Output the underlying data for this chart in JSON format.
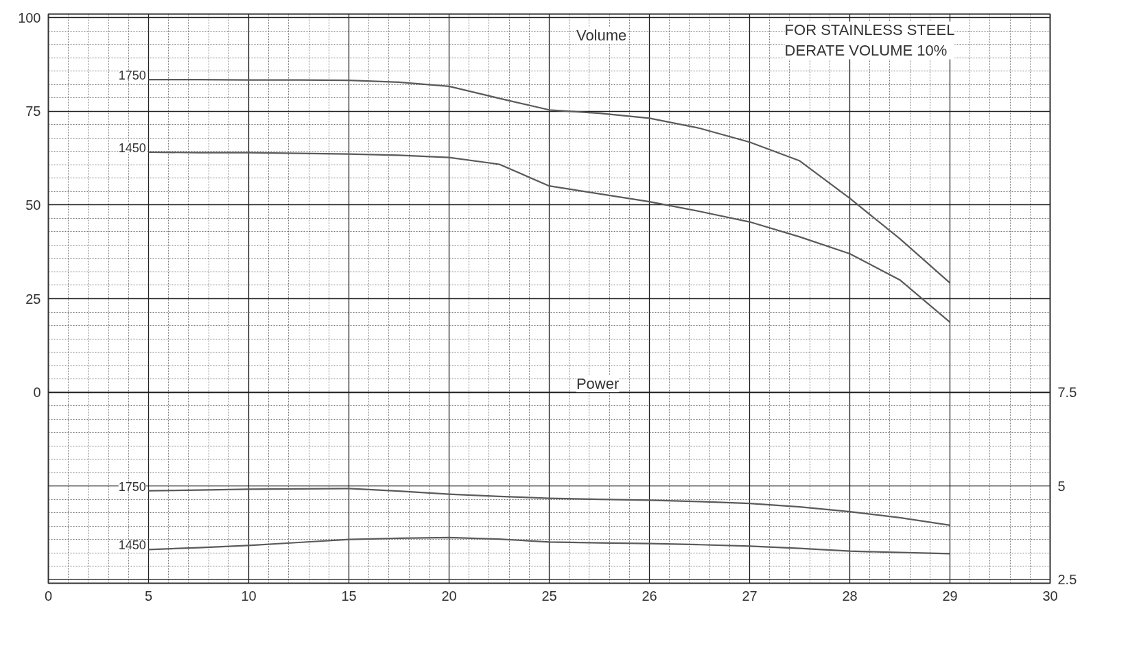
{
  "chart_data": {
    "type": "line",
    "categories": [
      "0",
      null,
      "5",
      null,
      "10",
      null,
      "15",
      null,
      "20",
      null,
      "25",
      null,
      "26",
      null,
      "27",
      null,
      "28",
      null,
      "29",
      null,
      "30"
    ],
    "ylim": [
      -51,
      101
    ],
    "yticks": [
      0,
      25,
      50,
      75,
      100
    ],
    "y2lim": [
      2.4,
      17.6
    ],
    "y2ticks": [
      2.5,
      5,
      7.5
    ],
    "grid": true,
    "marker": "none",
    "line_style": "solid",
    "annotations": [
      "Volume",
      "Power",
      "FOR STAINLESS STEEL DERATE VOLUME 10%"
    ],
    "series": [
      {
        "name": "1750",
        "color": "#5a5a5a",
        "values": [
          null,
          null,
          83.5,
          83.5,
          83.4,
          83.4,
          83.3,
          82.8,
          81.7,
          78.5,
          75.4,
          74.5,
          73.2,
          70.5,
          66.8,
          61.8,
          51.8,
          41,
          29.2,
          null,
          null
        ]
      },
      {
        "name": "1450",
        "color": "#5a5a5a",
        "values": [
          null,
          null,
          64.1,
          64,
          64,
          63.8,
          63.6,
          63.3,
          62.7,
          60.9,
          55.1,
          53,
          50.9,
          48.3,
          45.5,
          41.5,
          37,
          30,
          18.7,
          null,
          null
        ]
      },
      {
        "name": "1750",
        "color": "#5a5a5a",
        "axis": "y2",
        "values": [
          null,
          null,
          4.87,
          4.89,
          4.91,
          4.92,
          4.93,
          4.86,
          4.78,
          4.72,
          4.67,
          4.64,
          4.62,
          4.58,
          4.53,
          4.44,
          4.31,
          4.15,
          3.95,
          null,
          null
        ]
      },
      {
        "name": "1450",
        "color": "#5a5a5a",
        "axis": "y2",
        "values": [
          null,
          null,
          3.3,
          3.35,
          3.41,
          3.49,
          3.57,
          3.6,
          3.62,
          3.58,
          3.5,
          3.48,
          3.46,
          3.43,
          3.39,
          3.33,
          3.26,
          3.22,
          3.19,
          null,
          null
        ]
      }
    ]
  }
}
